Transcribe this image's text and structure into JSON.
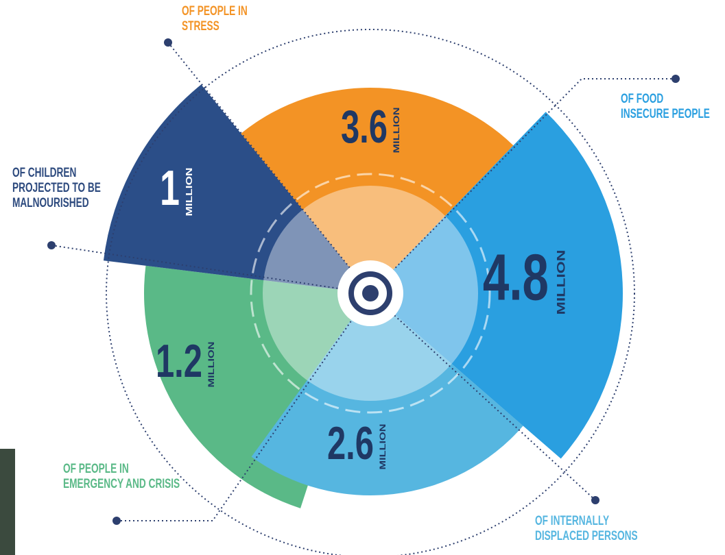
{
  "segments": [
    {
      "value": 3.6,
      "unit": "MILLION",
      "label": [
        "OF PEOPLE IN",
        "STRESS"
      ],
      "color": "#f39325"
    },
    {
      "value": 4.8,
      "unit": "MILLION",
      "label": [
        "OF FOOD",
        "INSECURE PEOPLE"
      ],
      "color": "#2a9fe0"
    },
    {
      "value": 2.6,
      "unit": "MILLION",
      "label": [
        "OF INTERNALLY",
        "DISPLACED PERSONS"
      ],
      "color": "#56b6e0"
    },
    {
      "value": 1.2,
      "unit": "MILLION",
      "label": [
        "OF PEOPLE IN",
        "EMERGENCY AND CRISIS"
      ],
      "color": "#5ab987"
    },
    {
      "value": 1,
      "unit": "MILLION",
      "label": [
        "OF CHILDREN",
        "PROJECTED TO BE",
        "MALNOURISHED"
      ],
      "color": "#2b4e88"
    }
  ]
}
